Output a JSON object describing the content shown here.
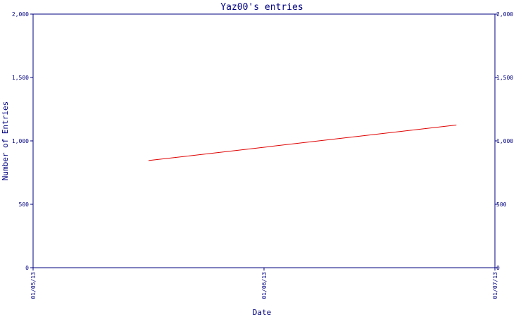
{
  "chart_data": {
    "type": "line",
    "title": "Yaz00's entries",
    "xlabel": "Date",
    "ylabel": "Number of Entries",
    "x_ticks": [
      "01/05/13",
      "01/06/13",
      "01/07/13"
    ],
    "y_ticks": [
      "0",
      "500",
      "1,000",
      "1,500",
      "2,000"
    ],
    "ylim": [
      0,
      2000
    ],
    "xlim": [
      "01/05/13",
      "01/07/13"
    ],
    "grid": false,
    "series": [
      {
        "x": [
          "01/05/13 12:00",
          "01/06/13 20:00"
        ],
        "y": [
          845,
          1125
        ]
      }
    ],
    "colors": {
      "axis": "#000080",
      "text": "#000080",
      "line": "#e00000"
    }
  }
}
